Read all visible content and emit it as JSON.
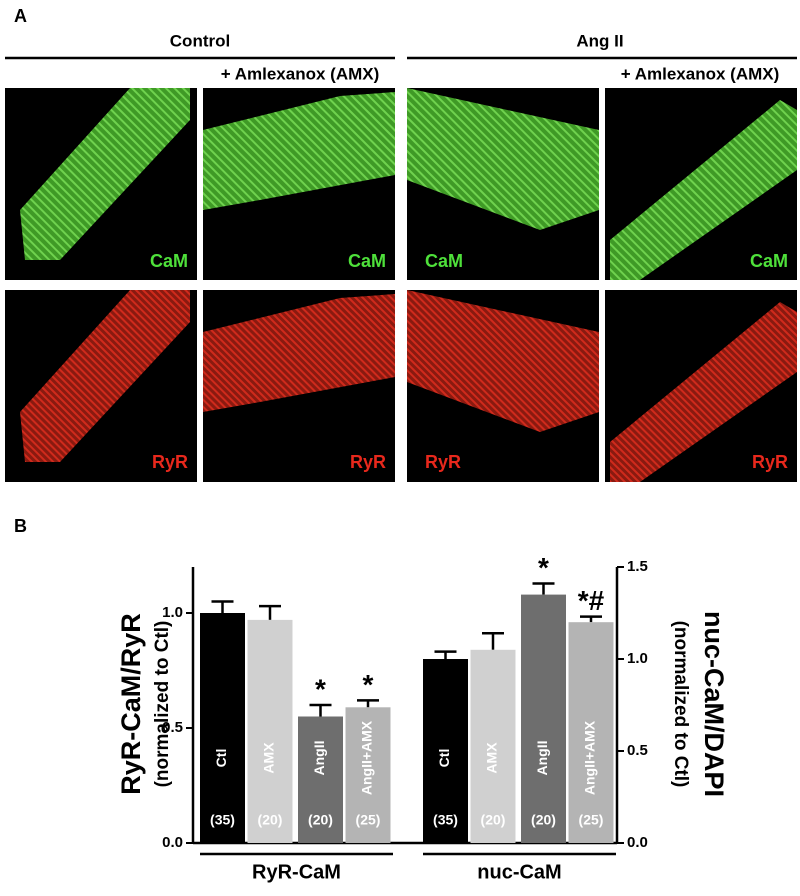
{
  "panel_a": {
    "label": "A",
    "groups": [
      "Control",
      "Ang II"
    ],
    "treatment": "+ Amlexanox (AMX)",
    "channels": [
      "CaM",
      "RyR"
    ]
  },
  "chart_data": {
    "type": "bar",
    "panel_label": "B",
    "categories": [
      "Ctl",
      "AMX",
      "AngII",
      "AngII+AMX"
    ],
    "colors": [
      "#000000",
      "#d0d0d0",
      "#6e6e6e",
      "#b4b4b4"
    ],
    "n_labels": [
      "(35)",
      "(20)",
      "(20)",
      "(25)"
    ],
    "ylabel": "RyR-CaM/RyR",
    "ylabel_sub": "(normalized to Ctl)",
    "y2label": "nuc-CaM/DAPI",
    "y2label_sub": "(normalized to Ctl)",
    "ylim": [
      0,
      1.2
    ],
    "yticks": [
      {
        "value": 0,
        "label": "0.0"
      },
      0.5,
      {
        "value": 1,
        "label": "1.0"
      }
    ],
    "y2lim": [
      0,
      1.5
    ],
    "y2ticks": [
      {
        "value": 0,
        "label": "0.0"
      },
      0.5,
      {
        "value": 1,
        "label": "1.0"
      },
      1.5
    ],
    "series": [
      {
        "name": "RyR-CaM",
        "values": [
          1.0,
          0.97,
          0.55,
          0.59
        ],
        "errors": [
          0.05,
          0.06,
          0.05,
          0.03
        ],
        "annotations": [
          null,
          null,
          "*",
          "*"
        ]
      },
      {
        "name": "nuc-CaM",
        "axis": "y2",
        "values": [
          1.0,
          1.05,
          1.35,
          1.2
        ],
        "errors": [
          0.04,
          0.09,
          0.06,
          0.03
        ],
        "annotations": [
          null,
          null,
          "*",
          "*#"
        ]
      }
    ]
  }
}
